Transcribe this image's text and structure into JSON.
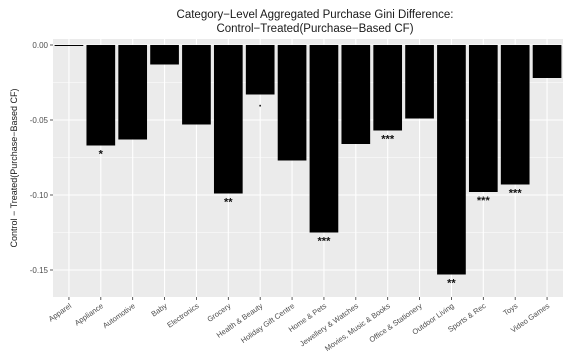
{
  "chart_data": {
    "type": "bar",
    "title_line1": "Category−Level Aggregated Purchase Gini Difference:",
    "title_line2": "Control−Treated(Purchase−Based CF)",
    "xlabel": "",
    "ylabel": "Control − Treated(Purchase−Based CF)",
    "ylim": [
      -0.168,
      0.004
    ],
    "yticks": [
      0.0,
      -0.05,
      -0.1,
      -0.15
    ],
    "ytick_labels": [
      "0.00",
      "-0.05",
      "-0.10",
      "-0.15"
    ],
    "grid": true,
    "background": "#ebebeb",
    "bar_color": "#000000",
    "categories": [
      "Apparel",
      "Appliance",
      "Automotive",
      "Baby",
      "Electronics",
      "Grocery",
      "Health & Beauty",
      "Holiday Gift Centre",
      "Home & Pets",
      "Jewellery & Watches",
      "Movies, Music & Books",
      "Office & Stationery",
      "Outdoor Living",
      "Sports & Rec",
      "Toys",
      "Video Games"
    ],
    "values": [
      -0.0005,
      -0.067,
      -0.063,
      -0.013,
      -0.053,
      -0.099,
      -0.033,
      -0.077,
      -0.125,
      -0.066,
      -0.057,
      -0.049,
      -0.153,
      -0.098,
      -0.093,
      -0.022
    ],
    "significance": [
      "",
      "*",
      "",
      "",
      "",
      "**",
      ".",
      "",
      "***",
      "",
      "***",
      "",
      "**",
      "***",
      "***",
      ""
    ]
  }
}
